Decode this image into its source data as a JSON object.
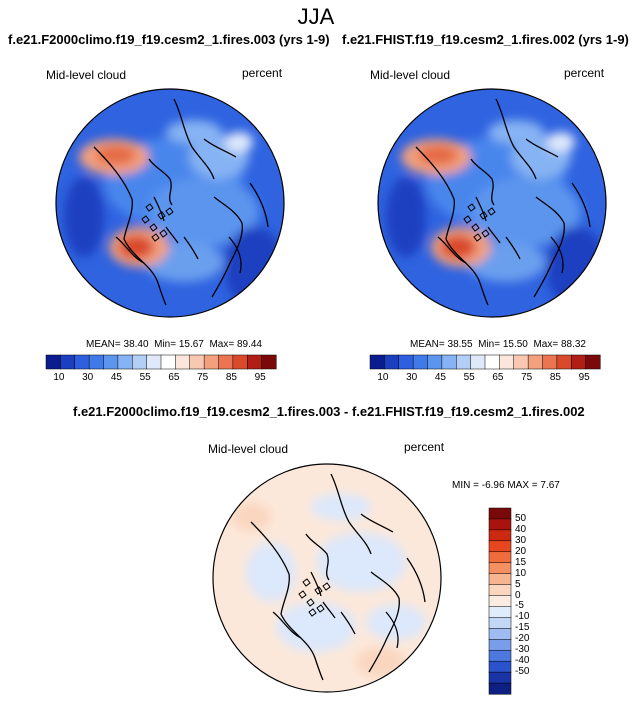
{
  "season": "JJA",
  "colors": {
    "sequential": [
      "#0a1c8e",
      "#1c3fc0",
      "#2e5fe0",
      "#3f7ae8",
      "#5b95ee",
      "#86b3f3",
      "#b3cff6",
      "#dfe9fa",
      "#ffffff",
      "#fce6db",
      "#f8c8b0",
      "#f3a07f",
      "#ea7550",
      "#d94a2b",
      "#b01e15",
      "#7a0a0a"
    ],
    "diverging": [
      "#7a0a0a",
      "#a8130e",
      "#cc2a10",
      "#e6471e",
      "#f06c3c",
      "#f48f62",
      "#f7b490",
      "#fad6bf",
      "#fcebe0",
      "#e0ecfb",
      "#c3d7f7",
      "#9fbcf1",
      "#7a9de9",
      "#4d78df",
      "#2a52cc",
      "#1a34a8",
      "#0e1f82"
    ],
    "land_outline": "#000000"
  },
  "panels": [
    {
      "title": "f.e21.F2000climo.f19_f19.cesm2_1.fires.003 (yrs 1-9)",
      "field_label": "Mid-level cloud",
      "units": "percent",
      "mean_label": "MEAN=",
      "mean": "38.40",
      "min_label": "Min=",
      "min": "15.67",
      "max_label": "Max=",
      "max": "89.44"
    },
    {
      "title": "f.e21.FHIST.f19_f19.cesm2_1.fires.002 (yrs 1-9)",
      "field_label": "Mid-level cloud",
      "units": "percent",
      "mean_label": "MEAN=",
      "mean": "38.55",
      "min_label": "Min=",
      "min": "15.50",
      "max_label": "Max=",
      "max": "88.32"
    }
  ],
  "diff_panel": {
    "title": "f.e21.F2000climo.f19_f19.cesm2_1.fires.003 - f.e21.FHIST.f19_f19.cesm2_1.fires.002",
    "field_label": "Mid-level cloud",
    "units": "percent",
    "min_label": "MIN =",
    "min": "-6.96",
    "max_label": "MAX =",
    "max": "7.67"
  },
  "chart_data": [
    {
      "type": "heatmap",
      "projection": "polar stereographic (north pole)",
      "title": "f.e21.F2000climo.f19_f19.cesm2_1.fires.003 (yrs 1-9)",
      "variable": "Mid-level cloud",
      "units": "percent",
      "stats": {
        "mean": 38.4,
        "min": 15.67,
        "max": 89.44
      },
      "colorbar": {
        "ticks": [
          "10",
          "30",
          "45",
          "55",
          "65",
          "75",
          "85",
          "95"
        ],
        "range": [
          10,
          95
        ]
      }
    },
    {
      "type": "heatmap",
      "projection": "polar stereographic (north pole)",
      "title": "f.e21.FHIST.f19_f19.cesm2_1.fires.002 (yrs 1-9)",
      "variable": "Mid-level cloud",
      "units": "percent",
      "stats": {
        "mean": 38.55,
        "min": 15.5,
        "max": 88.32
      },
      "colorbar": {
        "ticks": [
          "10",
          "30",
          "45",
          "55",
          "65",
          "75",
          "85",
          "95"
        ],
        "range": [
          10,
          95
        ]
      }
    },
    {
      "type": "heatmap",
      "projection": "polar stereographic (north pole)",
      "title": "f.e21.F2000climo.f19_f19.cesm2_1.fires.003 - f.e21.FHIST.f19_f19.cesm2_1.fires.002",
      "variable": "Mid-level cloud",
      "units": "percent",
      "stats": {
        "min": -6.96,
        "max": 7.67
      },
      "colorbar": {
        "ticks": [
          "50",
          "40",
          "30",
          "20",
          "15",
          "10",
          "5",
          "0",
          "-5",
          "-10",
          "-15",
          "-20",
          "-30",
          "-40",
          "-50"
        ],
        "range": [
          -50,
          50
        ]
      }
    }
  ]
}
